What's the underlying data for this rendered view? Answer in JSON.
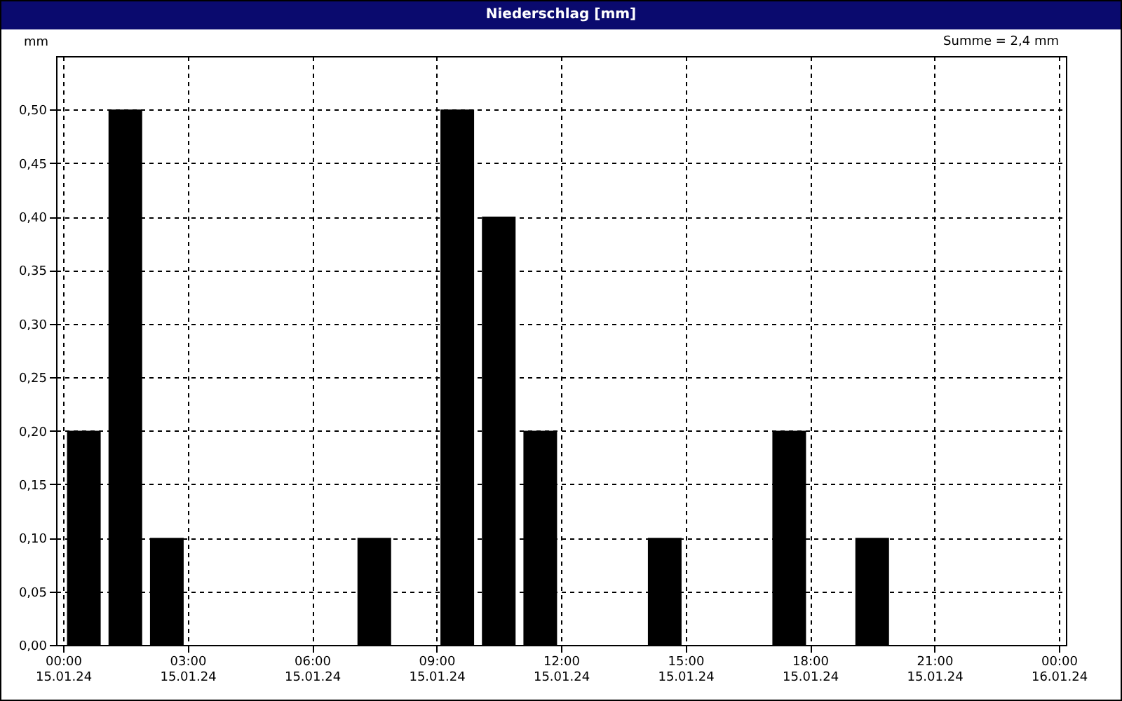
{
  "chart_data": {
    "type": "bar",
    "title": "Niederschlag [mm]",
    "ylabel": "mm",
    "annotations": [
      "Summe = 2,4 mm"
    ],
    "x": [
      "--01-15T00:30",
      "--01-15T01:30",
      "--01-15T02:30",
      "--01-15T07:30",
      "--01-15T09:30",
      "--01-15T10:30",
      "--01-15T11:30",
      "--01-15T14:30",
      "--01-15T17:30",
      "--01-15T19:30"
    ],
    "values": [
      0.2,
      0.5,
      0.1,
      0.1,
      0.5,
      0.4,
      0.2,
      0.1,
      0.2,
      0.1
    ],
    "color": "#000000",
    "xlim": [
      "--01-15T00:00",
      "--01-16T00:00"
    ],
    "xticks": [
      {
        "value": "--01-15T00:00",
        "label": "00:00\n15.01.24"
      },
      {
        "value": "--01-15T03:00",
        "label": "03:00\n15.01.24"
      },
      {
        "value": "--01-15T06:00",
        "label": "06:00\n15.01.24"
      },
      {
        "value": "--01-15T09:00",
        "label": "09:00\n15.01.24"
      },
      {
        "value": "--01-15T12:00",
        "label": "12:00\n15.01.24"
      },
      {
        "value": "--01-15T15:00",
        "label": "15:00\n15.01.24"
      },
      {
        "value": "--01-15T18:00",
        "label": "18:00\n15.01.24"
      },
      {
        "value": "--01-15T21:00",
        "label": "21:00\n15.01.24"
      },
      {
        "value": "--01-16T00:00",
        "label": "00:00\n16.01.24"
      }
    ],
    "ylim": [
      0,
      0.55
    ],
    "yticks": [
      {
        "value": 0,
        "label": "0,00"
      },
      {
        "value": 0.05,
        "label": "0,05"
      },
      {
        "value": 0.1,
        "label": "0,10"
      },
      {
        "value": 0.15,
        "label": "0,15"
      },
      {
        "value": 0.2,
        "label": "0,20"
      },
      {
        "value": 0.25,
        "label": "0,25"
      },
      {
        "value": 0.3,
        "label": "0,30"
      },
      {
        "value": 0.35,
        "label": "0,35"
      },
      {
        "value": 0.4,
        "label": "0,40"
      },
      {
        "value": 0.45,
        "label": "0,45"
      },
      {
        "value": 0.5,
        "label": "0,50"
      }
    ],
    "grid": true
  }
}
